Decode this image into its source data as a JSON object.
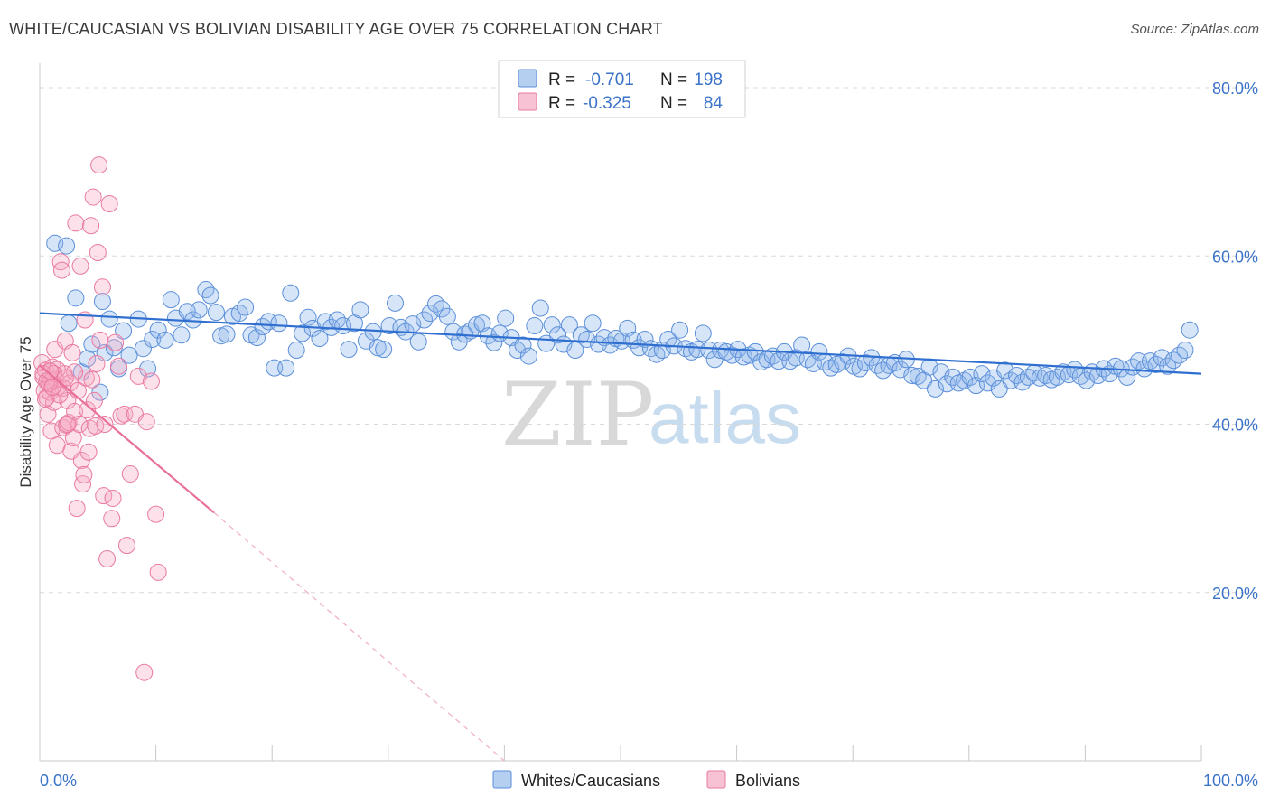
{
  "header": {
    "title": "WHITE/CAUCASIAN VS BOLIVIAN DISABILITY AGE OVER 75 CORRELATION CHART",
    "source": "Source: ZipAtlas.com"
  },
  "watermark": {
    "zip": "ZIP",
    "atlas": "atlas"
  },
  "legend": {
    "rows": [
      {
        "r_label": "R =",
        "r_value": "-0.701",
        "n_label": "N =",
        "n_value": "198",
        "color": "#5b8fd9"
      },
      {
        "r_label": "R =",
        "r_value": "-0.325",
        "n_label": "N =",
        "n_value": "84",
        "color": "#e97aa0"
      }
    ]
  },
  "bottom_legend": [
    {
      "label": "Whites/Caucasians",
      "color": "#5b8fd9"
    },
    {
      "label": "Bolivians",
      "color": "#e97aa0"
    }
  ],
  "chart_data": {
    "type": "scatter",
    "title": "WHITE/CAUCASIAN VS BOLIVIAN DISABILITY AGE OVER 75 CORRELATION CHART",
    "xlabel": "",
    "ylabel": "Disability Age Over 75",
    "xlim": [
      0,
      100
    ],
    "ylim": [
      0,
      85
    ],
    "x_tick_labels": [
      "0.0%",
      "100.0%"
    ],
    "y_ticks": [
      20,
      40,
      60,
      80
    ],
    "y_tick_labels": [
      "20.0%",
      "40.0%",
      "60.0%",
      "80.0%"
    ],
    "grid": true,
    "legend_position": "top-center",
    "series": [
      {
        "name": "Whites/Caucasians",
        "color": "#5b8fd9",
        "trend": {
          "x": [
            0,
            100
          ],
          "y": [
            53.2,
            46.0
          ],
          "style": "solid"
        },
        "points": [
          [
            1.3,
            61.5
          ],
          [
            2.3,
            61.2
          ],
          [
            2.5,
            52.0
          ],
          [
            3.1,
            55.0
          ],
          [
            3.6,
            46.2
          ],
          [
            4.1,
            47.8
          ],
          [
            4.5,
            49.5
          ],
          [
            5.4,
            54.6
          ],
          [
            5.6,
            48.5
          ],
          [
            5.2,
            43.8
          ],
          [
            6.0,
            52.5
          ],
          [
            6.4,
            49.1
          ],
          [
            6.8,
            46.6
          ],
          [
            7.2,
            51.1
          ],
          [
            7.7,
            48.2
          ],
          [
            8.5,
            52.5
          ],
          [
            8.9,
            49.0
          ],
          [
            9.3,
            46.6
          ],
          [
            9.7,
            50.1
          ],
          [
            10.2,
            51.2
          ],
          [
            10.8,
            50.0
          ],
          [
            11.3,
            54.8
          ],
          [
            11.7,
            52.6
          ],
          [
            12.2,
            50.6
          ],
          [
            12.7,
            53.4
          ],
          [
            13.2,
            52.4
          ],
          [
            13.7,
            53.6
          ],
          [
            14.3,
            56.0
          ],
          [
            14.7,
            55.3
          ],
          [
            15.2,
            53.3
          ],
          [
            15.6,
            50.5
          ],
          [
            16.1,
            50.7
          ],
          [
            16.6,
            52.8
          ],
          [
            17.2,
            53.2
          ],
          [
            17.7,
            53.9
          ],
          [
            18.2,
            50.6
          ],
          [
            18.7,
            50.3
          ],
          [
            19.2,
            51.6
          ],
          [
            19.7,
            52.2
          ],
          [
            20.2,
            46.7
          ],
          [
            20.6,
            52.0
          ],
          [
            21.2,
            46.7
          ],
          [
            21.6,
            55.6
          ],
          [
            22.1,
            48.8
          ],
          [
            22.6,
            50.8
          ],
          [
            23.1,
            52.7
          ],
          [
            23.5,
            51.4
          ],
          [
            24.1,
            50.2
          ],
          [
            24.6,
            52.2
          ],
          [
            25.1,
            51.5
          ],
          [
            25.6,
            52.4
          ],
          [
            26.1,
            51.7
          ],
          [
            26.6,
            48.9
          ],
          [
            27.1,
            52.0
          ],
          [
            27.6,
            53.6
          ],
          [
            28.1,
            49.9
          ],
          [
            28.7,
            51.0
          ],
          [
            29.1,
            49.1
          ],
          [
            29.6,
            48.9
          ],
          [
            30.1,
            51.7
          ],
          [
            30.6,
            54.4
          ],
          [
            31.1,
            51.5
          ],
          [
            31.5,
            51.0
          ],
          [
            32.1,
            51.9
          ],
          [
            32.6,
            49.8
          ],
          [
            33.1,
            52.4
          ],
          [
            33.6,
            53.2
          ],
          [
            34.1,
            54.3
          ],
          [
            34.6,
            53.7
          ],
          [
            35.1,
            52.8
          ],
          [
            35.6,
            51.0
          ],
          [
            36.1,
            49.8
          ],
          [
            36.6,
            50.7
          ],
          [
            37.1,
            51.1
          ],
          [
            37.6,
            51.8
          ],
          [
            38.1,
            52.0
          ],
          [
            38.6,
            50.5
          ],
          [
            39.1,
            49.7
          ],
          [
            39.6,
            50.8
          ],
          [
            40.1,
            52.6
          ],
          [
            40.6,
            50.3
          ],
          [
            41.1,
            48.8
          ],
          [
            41.6,
            49.4
          ],
          [
            42.1,
            48.1
          ],
          [
            42.6,
            51.7
          ],
          [
            43.1,
            53.8
          ],
          [
            43.6,
            49.6
          ],
          [
            44.1,
            51.8
          ],
          [
            44.6,
            50.6
          ],
          [
            45.1,
            49.5
          ],
          [
            45.6,
            51.8
          ],
          [
            46.1,
            48.8
          ],
          [
            46.6,
            50.6
          ],
          [
            47.1,
            50.1
          ],
          [
            47.6,
            52.0
          ],
          [
            48.1,
            49.5
          ],
          [
            48.6,
            50.3
          ],
          [
            49.1,
            49.4
          ],
          [
            49.6,
            50.2
          ],
          [
            50.1,
            49.9
          ],
          [
            50.6,
            51.4
          ],
          [
            51.1,
            50.0
          ],
          [
            51.6,
            49.1
          ],
          [
            52.1,
            50.1
          ],
          [
            52.6,
            49.0
          ],
          [
            53.1,
            48.3
          ],
          [
            53.6,
            48.8
          ],
          [
            54.1,
            50.1
          ],
          [
            54.6,
            49.3
          ],
          [
            55.1,
            51.2
          ],
          [
            55.6,
            49.0
          ],
          [
            56.1,
            48.6
          ],
          [
            56.6,
            48.9
          ],
          [
            57.1,
            50.8
          ],
          [
            57.6,
            48.8
          ],
          [
            58.1,
            47.7
          ],
          [
            58.6,
            48.8
          ],
          [
            59.1,
            48.6
          ],
          [
            59.6,
            48.2
          ],
          [
            60.1,
            48.9
          ],
          [
            60.6,
            48.0
          ],
          [
            61.1,
            48.2
          ],
          [
            61.6,
            48.6
          ],
          [
            62.1,
            47.4
          ],
          [
            62.6,
            47.7
          ],
          [
            63.1,
            48.1
          ],
          [
            63.6,
            47.5
          ],
          [
            64.1,
            48.6
          ],
          [
            64.6,
            47.5
          ],
          [
            65.1,
            47.9
          ],
          [
            65.6,
            49.4
          ],
          [
            66.1,
            47.7
          ],
          [
            66.6,
            47.2
          ],
          [
            67.1,
            48.6
          ],
          [
            67.6,
            47.4
          ],
          [
            68.1,
            46.7
          ],
          [
            68.6,
            47.1
          ],
          [
            69.1,
            47.4
          ],
          [
            69.6,
            48.1
          ],
          [
            70.1,
            46.9
          ],
          [
            70.6,
            46.6
          ],
          [
            71.1,
            47.3
          ],
          [
            71.6,
            47.9
          ],
          [
            72.1,
            47.0
          ],
          [
            72.6,
            46.4
          ],
          [
            73.1,
            47.0
          ],
          [
            73.6,
            47.3
          ],
          [
            74.1,
            46.5
          ],
          [
            74.6,
            47.7
          ],
          [
            75.1,
            45.8
          ],
          [
            75.6,
            45.7
          ],
          [
            76.1,
            45.2
          ],
          [
            76.6,
            46.8
          ],
          [
            77.1,
            44.2
          ],
          [
            77.6,
            46.2
          ],
          [
            78.1,
            44.8
          ],
          [
            78.6,
            45.6
          ],
          [
            79.1,
            44.9
          ],
          [
            79.6,
            45.2
          ],
          [
            80.1,
            45.6
          ],
          [
            80.6,
            44.6
          ],
          [
            81.1,
            46.0
          ],
          [
            81.6,
            44.9
          ],
          [
            82.1,
            45.5
          ],
          [
            82.6,
            44.2
          ],
          [
            83.1,
            46.4
          ],
          [
            83.6,
            45.2
          ],
          [
            84.1,
            45.8
          ],
          [
            84.6,
            45.0
          ],
          [
            85.1,
            45.6
          ],
          [
            85.6,
            46.1
          ],
          [
            86.1,
            45.5
          ],
          [
            86.6,
            45.8
          ],
          [
            87.1,
            45.3
          ],
          [
            87.6,
            45.6
          ],
          [
            88.1,
            46.2
          ],
          [
            88.6,
            45.9
          ],
          [
            89.1,
            46.5
          ],
          [
            89.6,
            45.7
          ],
          [
            90.1,
            45.2
          ],
          [
            90.6,
            46.2
          ],
          [
            91.1,
            45.8
          ],
          [
            91.6,
            46.6
          ],
          [
            92.1,
            46.0
          ],
          [
            92.6,
            46.9
          ],
          [
            93.1,
            46.6
          ],
          [
            93.6,
            45.6
          ],
          [
            94.1,
            46.8
          ],
          [
            94.6,
            47.5
          ],
          [
            95.1,
            46.6
          ],
          [
            95.6,
            47.5
          ],
          [
            96.1,
            47.1
          ],
          [
            96.6,
            47.9
          ],
          [
            97.1,
            46.9
          ],
          [
            97.6,
            47.6
          ],
          [
            98.1,
            48.2
          ],
          [
            98.6,
            48.8
          ],
          [
            99.0,
            51.2
          ]
        ]
      },
      {
        "name": "Bolivians",
        "color": "#e97aa0",
        "trend": {
          "x": [
            0,
            15
          ],
          "y": [
            47.0,
            29.5
          ],
          "style": "solid",
          "extension": {
            "x": [
              15,
              40
            ],
            "y": [
              29.5,
              0
            ],
            "style": "dashed"
          }
        },
        "points": [
          [
            0.2,
            47.3
          ],
          [
            0.3,
            45.6
          ],
          [
            0.4,
            44.0
          ],
          [
            0.5,
            46.4
          ],
          [
            0.6,
            43.2
          ],
          [
            0.7,
            41.2
          ],
          [
            0.8,
            45.0
          ],
          [
            0.9,
            43.8
          ],
          [
            1.0,
            39.2
          ],
          [
            1.1,
            46.8
          ],
          [
            1.2,
            42.6
          ],
          [
            1.3,
            48.9
          ],
          [
            1.4,
            45.3
          ],
          [
            1.5,
            37.5
          ],
          [
            1.6,
            44.5
          ],
          [
            1.8,
            59.3
          ],
          [
            1.9,
            58.3
          ],
          [
            2.0,
            39.6
          ],
          [
            2.1,
            46.0
          ],
          [
            2.2,
            49.9
          ],
          [
            2.3,
            39.9
          ],
          [
            2.4,
            42.8
          ],
          [
            2.5,
            40.2
          ],
          [
            2.6,
            44.9
          ],
          [
            2.7,
            36.8
          ],
          [
            2.8,
            48.5
          ],
          [
            2.9,
            38.4
          ],
          [
            3.0,
            41.5
          ],
          [
            3.1,
            63.9
          ],
          [
            3.2,
            30.0
          ],
          [
            3.3,
            44.0
          ],
          [
            3.4,
            40.0
          ],
          [
            3.5,
            58.8
          ],
          [
            3.6,
            35.7
          ],
          [
            3.7,
            32.9
          ],
          [
            3.8,
            34.0
          ],
          [
            3.9,
            52.4
          ],
          [
            4.0,
            45.5
          ],
          [
            4.1,
            41.7
          ],
          [
            4.2,
            36.7
          ],
          [
            4.3,
            39.5
          ],
          [
            4.4,
            63.6
          ],
          [
            4.5,
            45.3
          ],
          [
            4.6,
            67.0
          ],
          [
            4.7,
            42.8
          ],
          [
            4.8,
            39.8
          ],
          [
            4.9,
            47.2
          ],
          [
            5.0,
            60.4
          ],
          [
            5.1,
            70.8
          ],
          [
            5.2,
            50.0
          ],
          [
            5.4,
            56.3
          ],
          [
            5.5,
            31.5
          ],
          [
            5.6,
            40.0
          ],
          [
            5.8,
            24.0
          ],
          [
            6.0,
            66.2
          ],
          [
            6.2,
            28.8
          ],
          [
            6.3,
            31.2
          ],
          [
            6.5,
            49.7
          ],
          [
            6.8,
            46.9
          ],
          [
            7.0,
            41.0
          ],
          [
            7.3,
            41.2
          ],
          [
            7.5,
            25.6
          ],
          [
            7.8,
            34.1
          ],
          [
            8.2,
            41.2
          ],
          [
            8.5,
            45.7
          ],
          [
            9.0,
            10.5
          ],
          [
            9.2,
            40.3
          ],
          [
            9.6,
            45.1
          ],
          [
            10.0,
            29.3
          ],
          [
            10.2,
            22.4
          ],
          [
            0.5,
            43.0
          ],
          [
            1.0,
            45.2
          ],
          [
            1.5,
            46.5
          ],
          [
            2.0,
            44.3
          ],
          [
            0.8,
            44.8
          ],
          [
            1.2,
            46.0
          ],
          [
            2.4,
            40.0
          ],
          [
            3.0,
            46.2
          ],
          [
            0.3,
            46.0
          ],
          [
            0.6,
            45.1
          ],
          [
            1.7,
            43.5
          ],
          [
            2.2,
            45.5
          ],
          [
            1.1,
            44.4
          ],
          [
            0.9,
            46.3
          ]
        ]
      }
    ]
  }
}
